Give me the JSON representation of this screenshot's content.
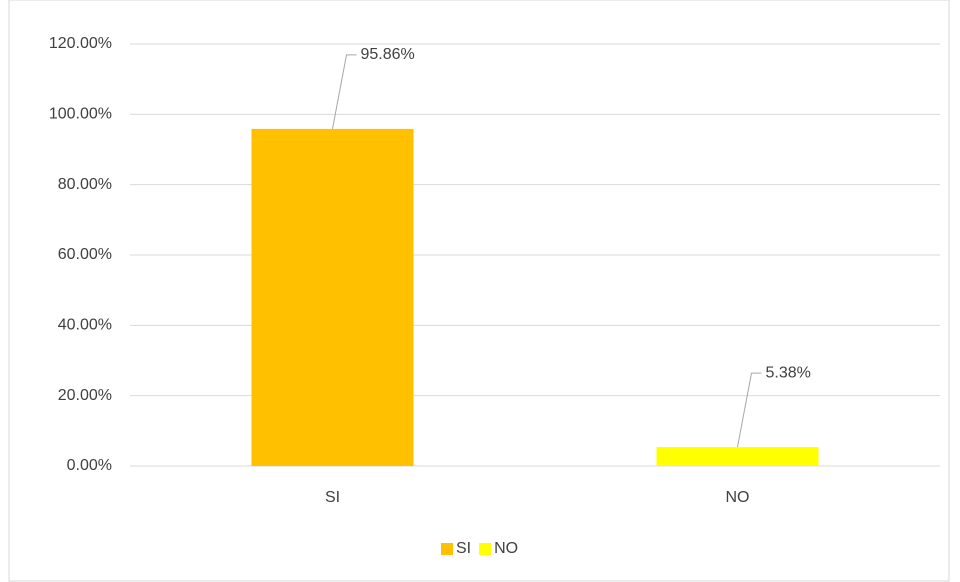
{
  "chart_data": {
    "type": "bar",
    "categories": [
      "SI",
      "NO"
    ],
    "series": [
      {
        "name": "SI",
        "color": "#ffc000",
        "values": [
          95.86,
          null
        ],
        "value_labels": [
          "95.86%",
          null
        ]
      },
      {
        "name": "NO",
        "color": "#ffff00",
        "values": [
          null,
          5.38
        ],
        "value_labels": [
          null,
          "5.38%"
        ]
      }
    ],
    "ylim": [
      0,
      120
    ],
    "yticks": [
      {
        "value": 0,
        "label": "0.00%"
      },
      {
        "value": 20,
        "label": "20.00%"
      },
      {
        "value": 40,
        "label": "40.00%"
      },
      {
        "value": 60,
        "label": "60.00%"
      },
      {
        "value": 80,
        "label": "80.00%"
      },
      {
        "value": 100,
        "label": "100.00%"
      },
      {
        "value": 120,
        "label": "120.00%"
      }
    ],
    "grid": true,
    "legend": "bottom"
  }
}
